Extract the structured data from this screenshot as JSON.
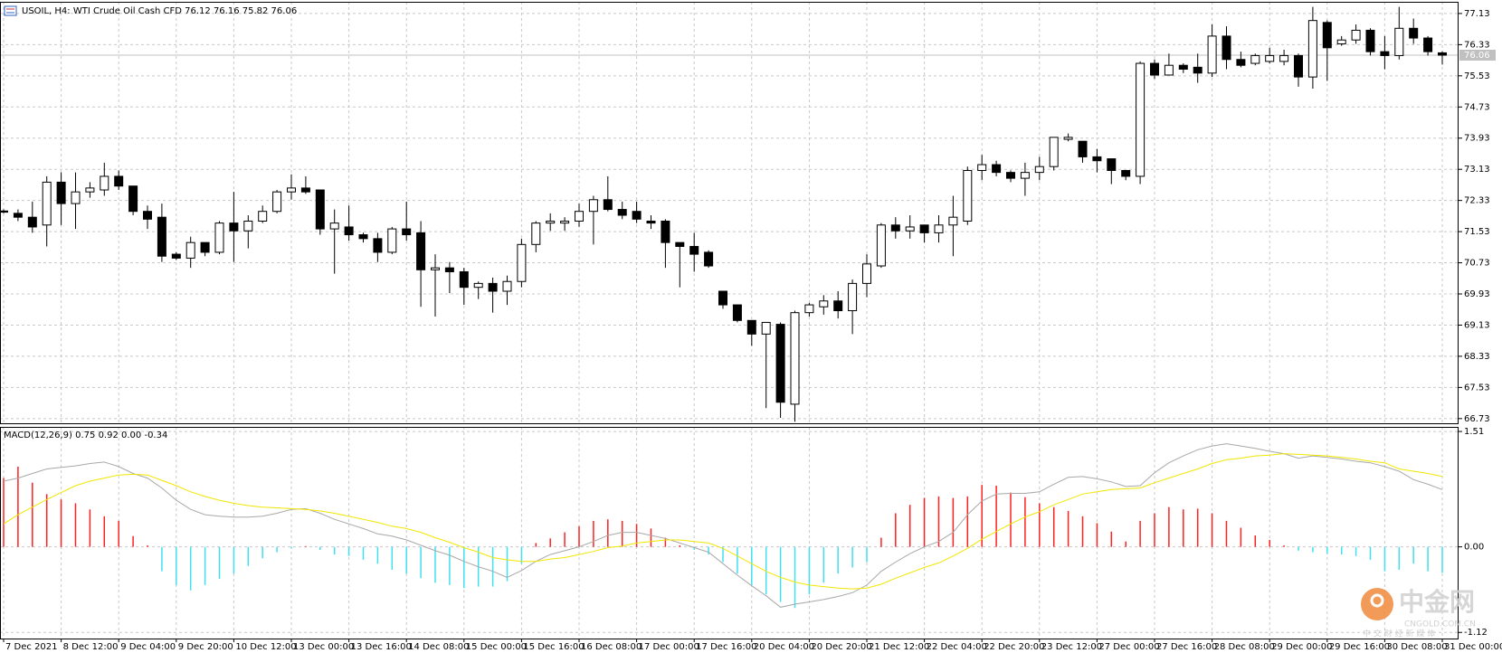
{
  "chart_data": [
    {
      "type": "candlestick",
      "title": "USOIL, H4: WTI Crude Oil Cash CFD 76.12 76.16 75.82 76.06",
      "categories": [
        "7 Dec 2021",
        null,
        null,
        null,
        "8 Dec 12:00",
        null,
        null,
        null,
        "9 Dec 04:00",
        null,
        null,
        null,
        "9 Dec 20:00",
        null,
        null,
        null,
        "10 Dec 12:00",
        null,
        null,
        null,
        "13 Dec 00:00",
        null,
        null,
        null,
        "13 Dec 16:00",
        null,
        null,
        null,
        "14 Dec 08:00",
        null,
        null,
        null,
        "15 Dec 00:00",
        null,
        null,
        null,
        "15 Dec 16:00",
        null,
        null,
        null,
        "16 Dec 08:00",
        null,
        null,
        null,
        "17 Dec 00:00",
        null,
        null,
        null,
        "17 Dec 16:00",
        null,
        null,
        null,
        "20 Dec 04:00",
        null,
        null,
        null,
        "20 Dec 20:00",
        null,
        null,
        null,
        "21 Dec 12:00",
        null,
        null,
        null,
        "22 Dec 04:00",
        null,
        null,
        null,
        "22 Dec 20:00",
        null,
        null,
        null,
        "23 Dec 12:00",
        null,
        null,
        null,
        "27 Dec 00:00",
        null,
        null,
        null,
        "27 Dec 16:00",
        null,
        null,
        null,
        "28 Dec 08:00",
        null,
        null,
        null,
        "29 Dec 00:00",
        null,
        null,
        null,
        "29 Dec 16:00",
        null,
        null,
        null,
        "30 Dec 08:00",
        null,
        null,
        null,
        "31 Dec 00:00"
      ],
      "open": [
        72.06,
        72.0,
        71.9,
        71.7,
        72.8,
        72.25,
        72.55,
        72.6,
        72.95,
        72.7,
        72.05,
        71.9,
        70.95,
        70.85,
        71.25,
        71.0,
        71.75,
        71.55,
        71.8,
        72.05,
        72.55,
        72.65,
        72.6,
        71.6,
        71.65,
        71.45,
        71.35,
        71.0,
        71.6,
        71.5,
        70.55,
        70.6,
        70.5,
        70.1,
        70.2,
        70.0,
        70.25,
        71.2,
        71.75,
        71.75,
        71.8,
        72.05,
        72.35,
        72.1,
        72.05,
        71.8,
        71.8,
        71.25,
        71.15,
        71.0,
        70.0,
        69.65,
        69.25,
        68.9,
        69.15,
        67.1,
        69.45,
        69.6,
        69.75,
        69.5,
        70.2,
        70.65,
        71.7,
        71.55,
        71.7,
        71.5,
        71.7,
        71.8,
        73.1,
        73.25,
        73.05,
        72.9,
        73.05,
        73.2,
        73.9,
        73.85,
        73.45,
        73.4,
        73.1,
        72.95,
        75.85,
        75.55,
        75.8,
        75.75,
        75.6,
        76.55,
        75.95,
        75.85,
        75.9,
        75.9,
        76.05,
        75.5,
        76.9,
        76.35,
        76.45,
        76.7,
        76.15,
        76.05,
        76.75,
        76.5,
        76.12
      ],
      "high": [
        72.1,
        72.1,
        72.3,
        72.95,
        73.05,
        73.05,
        72.8,
        73.3,
        73.1,
        72.7,
        72.2,
        72.25,
        71.0,
        71.4,
        71.25,
        71.8,
        72.55,
        71.95,
        72.2,
        72.6,
        73.0,
        72.95,
        72.6,
        72.1,
        72.2,
        71.5,
        71.5,
        71.65,
        72.3,
        71.8,
        70.95,
        70.75,
        70.6,
        70.25,
        70.35,
        70.4,
        71.35,
        71.8,
        72.0,
        71.9,
        72.25,
        72.45,
        72.95,
        72.3,
        72.3,
        71.95,
        71.85,
        71.25,
        71.5,
        71.05,
        70.0,
        69.65,
        69.25,
        69.2,
        69.2,
        69.5,
        69.7,
        69.9,
        70.0,
        70.3,
        70.95,
        71.75,
        71.9,
        71.95,
        71.7,
        71.95,
        72.45,
        73.2,
        73.5,
        73.35,
        73.1,
        73.3,
        73.45,
        73.95,
        74.05,
        73.85,
        73.65,
        73.4,
        73.1,
        75.9,
        75.95,
        76.1,
        75.85,
        76.1,
        76.85,
        76.8,
        76.15,
        76.1,
        76.25,
        76.2,
        76.1,
        77.3,
        76.95,
        76.55,
        76.85,
        76.75,
        76.55,
        77.3,
        77.0,
        76.55,
        76.16
      ],
      "low": [
        72.0,
        71.8,
        71.5,
        71.15,
        71.7,
        71.6,
        72.4,
        72.45,
        72.6,
        71.95,
        71.6,
        70.75,
        70.8,
        70.6,
        70.9,
        70.95,
        70.75,
        71.1,
        71.75,
        72.0,
        72.35,
        72.5,
        71.45,
        70.45,
        71.3,
        71.25,
        70.75,
        70.95,
        71.3,
        69.6,
        69.35,
        69.95,
        69.65,
        69.8,
        69.45,
        69.65,
        70.1,
        71.0,
        71.55,
        71.55,
        71.65,
        71.2,
        72.05,
        71.85,
        71.75,
        71.6,
        70.6,
        70.1,
        70.5,
        70.6,
        69.55,
        69.2,
        68.6,
        67.0,
        66.75,
        66.65,
        69.35,
        69.4,
        69.3,
        68.9,
        69.85,
        70.6,
        71.35,
        71.35,
        71.25,
        71.25,
        70.9,
        71.7,
        72.85,
        72.95,
        72.8,
        72.45,
        72.85,
        73.1,
        73.85,
        73.3,
        73.05,
        72.75,
        72.85,
        72.75,
        75.45,
        75.55,
        75.6,
        75.35,
        75.5,
        75.7,
        75.75,
        75.8,
        75.85,
        75.8,
        75.25,
        75.2,
        75.4,
        76.3,
        76.35,
        76.05,
        75.7,
        75.95,
        76.35,
        76.05,
        75.82
      ],
      "close": [
        72.03,
        71.9,
        71.65,
        72.8,
        72.25,
        72.55,
        72.65,
        72.95,
        72.7,
        72.05,
        71.85,
        70.9,
        70.85,
        71.25,
        71.0,
        71.75,
        71.55,
        71.8,
        72.05,
        72.55,
        72.65,
        72.55,
        71.6,
        71.75,
        71.45,
        71.35,
        71.0,
        71.6,
        71.45,
        70.55,
        70.6,
        70.5,
        70.1,
        70.2,
        70.0,
        70.25,
        71.2,
        71.75,
        71.8,
        71.8,
        72.05,
        72.35,
        72.1,
        71.95,
        71.85,
        71.75,
        71.25,
        71.15,
        70.95,
        70.65,
        69.65,
        69.25,
        68.9,
        69.2,
        67.15,
        69.45,
        69.65,
        69.75,
        69.5,
        70.2,
        70.7,
        71.7,
        71.55,
        71.65,
        71.5,
        71.7,
        71.9,
        73.1,
        73.25,
        73.05,
        72.9,
        73.05,
        73.2,
        73.95,
        73.95,
        73.45,
        73.35,
        73.1,
        72.95,
        75.85,
        75.55,
        75.8,
        75.7,
        75.6,
        76.55,
        75.95,
        75.8,
        76.05,
        76.05,
        76.05,
        75.5,
        76.95,
        76.25,
        76.45,
        76.7,
        76.15,
        76.05,
        76.75,
        76.5,
        76.15,
        76.06
      ],
      "up_color": "#ffffff",
      "down_color": "#000000",
      "ylim": [
        66.61,
        77.43
      ],
      "yticks": [
        77.13,
        76.33,
        75.53,
        74.73,
        73.93,
        73.13,
        72.33,
        71.53,
        70.73,
        69.93,
        69.13,
        68.33,
        67.53,
        66.73
      ],
      "grid": true,
      "last_price": 76.06
    },
    {
      "type": "macd",
      "title": "MACD(12,26,9) 0.75 0.92 0.00 -0.34",
      "series": [
        {
          "kind": "bar",
          "color": "#ff2020",
          "negative_color": "#40e0f0",
          "values": [
            0.9,
            1.05,
            0.84,
            0.69,
            0.62,
            0.57,
            0.49,
            0.4,
            0.34,
            0.14,
            0.02,
            -0.32,
            -0.5,
            -0.57,
            -0.5,
            -0.42,
            -0.35,
            -0.25,
            -0.15,
            -0.07,
            -0.02,
            0.01,
            -0.04,
            -0.1,
            -0.12,
            -0.17,
            -0.22,
            -0.3,
            -0.35,
            -0.41,
            -0.47,
            -0.5,
            -0.54,
            -0.52,
            -0.52,
            -0.45,
            -0.22,
            0.05,
            0.11,
            0.19,
            0.27,
            0.34,
            0.36,
            0.34,
            0.3,
            0.24,
            0.12,
            0.02,
            -0.04,
            -0.1,
            -0.2,
            -0.35,
            -0.5,
            -0.62,
            -0.72,
            -0.8,
            -0.62,
            -0.47,
            -0.35,
            -0.27,
            -0.2,
            0.12,
            0.44,
            0.55,
            0.64,
            0.66,
            0.64,
            0.66,
            0.81,
            0.8,
            0.71,
            0.65,
            0.57,
            0.52,
            0.47,
            0.4,
            0.31,
            0.2,
            0.07,
            0.34,
            0.44,
            0.52,
            0.49,
            0.5,
            0.44,
            0.34,
            0.25,
            0.15,
            0.09,
            0.02,
            -0.05,
            -0.07,
            -0.09,
            -0.1,
            -0.12,
            -0.17,
            -0.32,
            -0.3,
            -0.22,
            -0.32,
            -0.34
          ]
        },
        {
          "kind": "line",
          "color": "#a8a8a8",
          "values": [
            0.86,
            0.9,
            0.96,
            1.02,
            1.04,
            1.06,
            1.09,
            1.11,
            1.05,
            0.96,
            0.9,
            0.77,
            0.61,
            0.49,
            0.42,
            0.4,
            0.39,
            0.39,
            0.4,
            0.44,
            0.49,
            0.5,
            0.44,
            0.36,
            0.3,
            0.24,
            0.17,
            0.14,
            0.09,
            0.02,
            -0.05,
            -0.11,
            -0.19,
            -0.26,
            -0.32,
            -0.4,
            -0.31,
            -0.19,
            -0.1,
            -0.05,
            0,
            0.07,
            0.15,
            0.19,
            0.19,
            0.15,
            0.11,
            0.05,
            -0.01,
            -0.07,
            -0.22,
            -0.37,
            -0.51,
            -0.64,
            -0.79,
            -0.75,
            -0.72,
            -0.69,
            -0.65,
            -0.6,
            -0.5,
            -0.32,
            -0.2,
            -0.09,
            0,
            0.07,
            0.19,
            0.42,
            0.6,
            0.69,
            0.7,
            0.7,
            0.72,
            0.82,
            0.91,
            0.92,
            0.89,
            0.85,
            0.79,
            0.8,
            0.97,
            1.1,
            1.19,
            1.27,
            1.32,
            1.35,
            1.32,
            1.29,
            1.25,
            1.22,
            1.16,
            1.19,
            1.17,
            1.15,
            1.12,
            1.1,
            1.05,
            0.99,
            0.88,
            0.82,
            0.75
          ]
        },
        {
          "kind": "line",
          "color": "#f2e600",
          "values": [
            0.3,
            0.42,
            0.52,
            0.62,
            0.71,
            0.8,
            0.86,
            0.9,
            0.94,
            0.95,
            0.94,
            0.87,
            0.8,
            0.72,
            0.66,
            0.61,
            0.57,
            0.54,
            0.52,
            0.51,
            0.5,
            0.49,
            0.47,
            0.44,
            0.4,
            0.36,
            0.32,
            0.27,
            0.24,
            0.19,
            0.12,
            0.06,
            -0.01,
            -0.07,
            -0.14,
            -0.17,
            -0.19,
            -0.19,
            -0.16,
            -0.14,
            -0.1,
            -0.06,
            -0.01,
            0.01,
            0.05,
            0.07,
            0.09,
            0.09,
            0.07,
            0.05,
            -0.02,
            -0.12,
            -0.22,
            -0.32,
            -0.4,
            -0.46,
            -0.5,
            -0.52,
            -0.54,
            -0.55,
            -0.54,
            -0.49,
            -0.41,
            -0.34,
            -0.27,
            -0.21,
            -0.12,
            -0.02,
            0.1,
            0.2,
            0.3,
            0.39,
            0.46,
            0.55,
            0.62,
            0.69,
            0.72,
            0.75,
            0.76,
            0.77,
            0.84,
            0.9,
            0.96,
            1.02,
            1.09,
            1.14,
            1.16,
            1.19,
            1.2,
            1.22,
            1.21,
            1.2,
            1.19,
            1.17,
            1.15,
            1.12,
            1.1,
            1.02,
            0.99,
            0.96,
            0.92
          ]
        }
      ],
      "ylim": [
        -1.2,
        1.57
      ],
      "yticks": [
        1.51,
        {
          "value": 0,
          "label": "0.00"
        },
        -1.12
      ],
      "grid": true
    }
  ],
  "watermark": {
    "brand": "中金网",
    "site": "CNGOLD.COM.CN",
    "slogan": "中 文 财 经 新 媒 体"
  }
}
